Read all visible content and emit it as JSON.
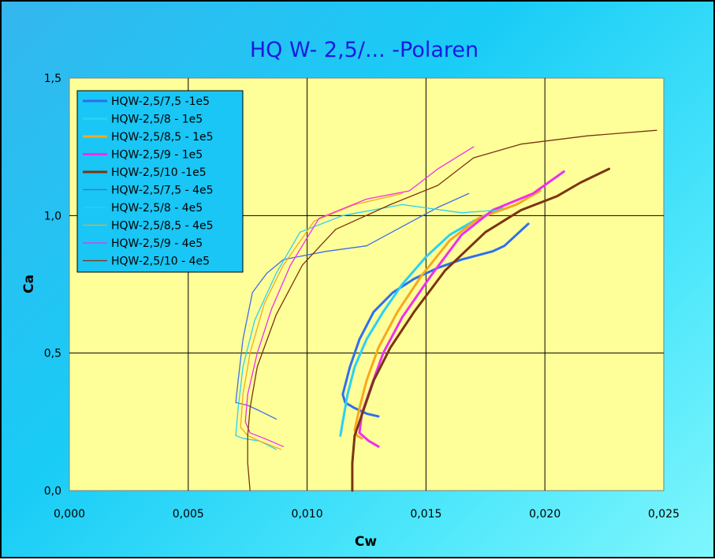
{
  "chart_data": {
    "type": "line",
    "title": "HQ W- 2,5/...  -Polaren",
    "xlabel": "Cw",
    "ylabel": "Ca",
    "xlim": [
      0,
      0.025
    ],
    "ylim": [
      0,
      1.5
    ],
    "x_ticks": [
      0,
      0.005,
      0.01,
      0.015,
      0.02,
      0.025
    ],
    "x_tick_labels": [
      "0,000",
      "0,005",
      "0,010",
      "0,015",
      "0,020",
      "0,025"
    ],
    "y_ticks": [
      0,
      0.5,
      1.0,
      1.5
    ],
    "y_tick_labels": [
      "0,0",
      "0,5",
      "1,0",
      "1,5"
    ],
    "grid": true,
    "legend_position": "top-left",
    "plot_background": "#ffff99",
    "series": [
      {
        "name": "HQW-2,5/7,5 -1e5",
        "color": "#2f6ef0",
        "width": 3,
        "points": [
          [
            0.013,
            0.27
          ],
          [
            0.0125,
            0.28
          ],
          [
            0.012,
            0.3
          ],
          [
            0.0116,
            0.32
          ],
          [
            0.0115,
            0.35
          ],
          [
            0.0118,
            0.45
          ],
          [
            0.0122,
            0.55
          ],
          [
            0.0128,
            0.65
          ],
          [
            0.0136,
            0.72
          ],
          [
            0.0145,
            0.77
          ],
          [
            0.0155,
            0.81
          ],
          [
            0.0165,
            0.84
          ],
          [
            0.0178,
            0.87
          ],
          [
            0.0178,
            0.87
          ],
          [
            0.0183,
            0.89
          ],
          [
            0.0193,
            0.97
          ]
        ]
      },
      {
        "name": "HQW-2,5/8 - 1e5",
        "color": "#2ad0f2",
        "width": 3,
        "points": [
          [
            0.0114,
            0.2
          ],
          [
            0.0115,
            0.25
          ],
          [
            0.0117,
            0.35
          ],
          [
            0.012,
            0.45
          ],
          [
            0.0125,
            0.55
          ],
          [
            0.0132,
            0.65
          ],
          [
            0.014,
            0.75
          ],
          [
            0.015,
            0.85
          ],
          [
            0.016,
            0.93
          ],
          [
            0.017,
            0.98
          ],
          [
            0.0182,
            1.03
          ]
        ]
      },
      {
        "name": "HQW-2,5/8,5 - 1e5",
        "color": "#f5a91e",
        "width": 3,
        "points": [
          [
            0.0123,
            0.19
          ],
          [
            0.0121,
            0.2
          ],
          [
            0.012,
            0.22
          ],
          [
            0.0122,
            0.3
          ],
          [
            0.0125,
            0.4
          ],
          [
            0.013,
            0.52
          ],
          [
            0.0138,
            0.65
          ],
          [
            0.0148,
            0.78
          ],
          [
            0.016,
            0.91
          ],
          [
            0.0172,
            0.99
          ],
          [
            0.0188,
            1.04
          ],
          [
            0.0198,
            1.09
          ]
        ]
      },
      {
        "name": "HQW-2,5/9 - 1e5",
        "color": "#ee2fee",
        "width": 3,
        "points": [
          [
            0.013,
            0.16
          ],
          [
            0.0126,
            0.18
          ],
          [
            0.0122,
            0.21
          ],
          [
            0.0123,
            0.28
          ],
          [
            0.0127,
            0.38
          ],
          [
            0.0132,
            0.5
          ],
          [
            0.014,
            0.63
          ],
          [
            0.0152,
            0.78
          ],
          [
            0.0165,
            0.93
          ],
          [
            0.0178,
            1.02
          ],
          [
            0.0195,
            1.08
          ],
          [
            0.0208,
            1.16
          ]
        ]
      },
      {
        "name": "HQW-2,5/10 -1e5",
        "color": "#7a3510",
        "width": 3,
        "points": [
          [
            0.0119,
            0.0
          ],
          [
            0.0119,
            0.1
          ],
          [
            0.012,
            0.2
          ],
          [
            0.0124,
            0.3
          ],
          [
            0.0128,
            0.4
          ],
          [
            0.0135,
            0.52
          ],
          [
            0.0145,
            0.65
          ],
          [
            0.0158,
            0.8
          ],
          [
            0.0175,
            0.94
          ],
          [
            0.019,
            1.02
          ],
          [
            0.0205,
            1.07
          ],
          [
            0.0215,
            1.12
          ],
          [
            0.0227,
            1.17
          ]
        ]
      },
      {
        "name": "HQW-2,5/7,5 - 4e5",
        "color": "#3d6ee8",
        "width": 1.3,
        "points": [
          [
            0.0087,
            0.26
          ],
          [
            0.008,
            0.29
          ],
          [
            0.0075,
            0.31
          ],
          [
            0.007,
            0.32
          ],
          [
            0.0071,
            0.4
          ],
          [
            0.0073,
            0.55
          ],
          [
            0.0077,
            0.72
          ],
          [
            0.0083,
            0.79
          ],
          [
            0.009,
            0.84
          ],
          [
            0.0108,
            0.87
          ],
          [
            0.0125,
            0.89
          ],
          [
            0.014,
            0.96
          ],
          [
            0.0155,
            1.03
          ],
          [
            0.0168,
            1.08
          ]
        ]
      },
      {
        "name": "HQW-2,5/8 - 4e5",
        "color": "#2ad0f2",
        "width": 1.3,
        "points": [
          [
            0.0087,
            0.15
          ],
          [
            0.008,
            0.18
          ],
          [
            0.0073,
            0.19
          ],
          [
            0.007,
            0.2
          ],
          [
            0.0071,
            0.3
          ],
          [
            0.0073,
            0.45
          ],
          [
            0.0078,
            0.62
          ],
          [
            0.0087,
            0.79
          ],
          [
            0.0097,
            0.94
          ],
          [
            0.0115,
            1.0
          ],
          [
            0.014,
            1.04
          ],
          [
            0.0165,
            1.01
          ],
          [
            0.018,
            1.02
          ]
        ]
      },
      {
        "name": "HQW-2,5/8,5 - 4e5",
        "color": "#f5a91e",
        "width": 1.3,
        "points": [
          [
            0.0089,
            0.15
          ],
          [
            0.008,
            0.18
          ],
          [
            0.0075,
            0.2
          ],
          [
            0.0072,
            0.23
          ],
          [
            0.0073,
            0.35
          ],
          [
            0.0076,
            0.5
          ],
          [
            0.0082,
            0.68
          ],
          [
            0.009,
            0.82
          ],
          [
            0.0103,
            0.98
          ],
          [
            0.012,
            1.04
          ],
          [
            0.014,
            1.08
          ]
        ]
      },
      {
        "name": "HQW-2,5/9 - 4e5",
        "color": "#ee2fee",
        "width": 1.3,
        "points": [
          [
            0.009,
            0.16
          ],
          [
            0.0082,
            0.19
          ],
          [
            0.0076,
            0.21
          ],
          [
            0.0074,
            0.25
          ],
          [
            0.0075,
            0.35
          ],
          [
            0.0079,
            0.5
          ],
          [
            0.0085,
            0.66
          ],
          [
            0.0093,
            0.82
          ],
          [
            0.0105,
            0.99
          ],
          [
            0.0125,
            1.06
          ],
          [
            0.0143,
            1.09
          ],
          [
            0.0155,
            1.17
          ],
          [
            0.017,
            1.25
          ]
        ]
      },
      {
        "name": "HQW-2,5/10 - 4e5",
        "color": "#7a3510",
        "width": 1.3,
        "points": [
          [
            0.0076,
            0.0
          ],
          [
            0.0075,
            0.1
          ],
          [
            0.0075,
            0.2
          ],
          [
            0.0076,
            0.3
          ],
          [
            0.0079,
            0.45
          ],
          [
            0.0087,
            0.64
          ],
          [
            0.0098,
            0.82
          ],
          [
            0.0112,
            0.95
          ],
          [
            0.0135,
            1.04
          ],
          [
            0.0155,
            1.11
          ],
          [
            0.017,
            1.21
          ],
          [
            0.019,
            1.26
          ],
          [
            0.0218,
            1.29
          ],
          [
            0.0247,
            1.31
          ]
        ]
      }
    ]
  }
}
